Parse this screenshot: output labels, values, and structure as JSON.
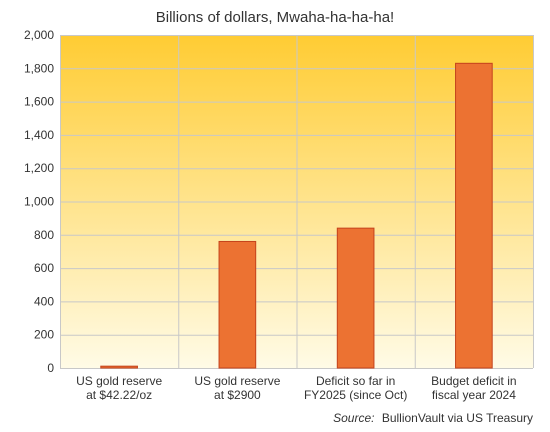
{
  "chart_data": {
    "type": "bar",
    "title": "Billions of dollars, Mwaha-ha-ha-ha!",
    "categories": [
      [
        "US gold reserve",
        "at $42.22/oz"
      ],
      [
        "US gold reserve",
        "at $2900"
      ],
      [
        "Deficit so far in",
        "FY2025 (since Oct)"
      ],
      [
        "Budget deficit in",
        "fiscal year 2024"
      ]
    ],
    "values": [
      11,
      760,
      840,
      1830
    ],
    "ylim": [
      0,
      2000
    ],
    "yticks": [
      0,
      200,
      400,
      600,
      800,
      1000,
      1200,
      1400,
      1600,
      1800,
      2000
    ],
    "ytick_labels": [
      "0",
      "200",
      "400",
      "600",
      "800",
      "1,000",
      "1,200",
      "1,400",
      "1,600",
      "1,800",
      "2,000"
    ],
    "grid": true,
    "source_prefix": "Source:",
    "source_text": "BullionVault via US Treasury"
  },
  "colors": {
    "bar_fill": "#ec7232",
    "bar_stroke": "#c4421c",
    "plot_top": "#ffcc33",
    "plot_bottom": "#fffbe6",
    "grid": "#c8c8c8"
  }
}
